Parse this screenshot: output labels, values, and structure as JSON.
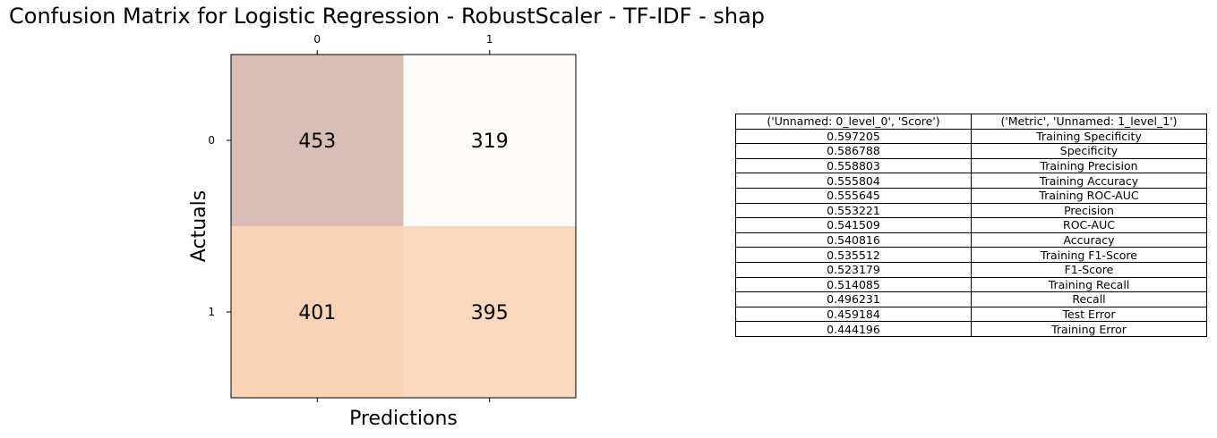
{
  "title": "Confusion Matrix for Logistic Regression - RobustScaler - TF-IDF - shap",
  "chart_data": {
    "type": "heatmap",
    "title": "Confusion Matrix for Logistic Regression - RobustScaler - TF-IDF - shap",
    "xlabel": "Predictions",
    "ylabel": "Actuals",
    "x_ticks": [
      "0",
      "1"
    ],
    "y_ticks": [
      "0",
      "1"
    ],
    "matrix": [
      [
        453,
        319
      ],
      [
        401,
        395
      ]
    ],
    "colors": [
      [
        "#d9beb5",
        "#fffbf8"
      ],
      [
        "#fad3b7",
        "#fad8bd"
      ]
    ]
  },
  "table": {
    "headers": [
      "('Unnamed: 0_level_0', 'Score')",
      "('Metric', 'Unnamed: 1_level_1')"
    ],
    "rows": [
      [
        "0.597205",
        "Training Specificity"
      ],
      [
        "0.586788",
        "Specificity"
      ],
      [
        "0.558803",
        "Training Precision"
      ],
      [
        "0.555804",
        "Training Accuracy"
      ],
      [
        "0.555645",
        "Training ROC-AUC"
      ],
      [
        "0.553221",
        "Precision"
      ],
      [
        "0.541509",
        "ROC-AUC"
      ],
      [
        "0.540816",
        "Accuracy"
      ],
      [
        "0.535512",
        "Training F1-Score"
      ],
      [
        "0.523179",
        "F1-Score"
      ],
      [
        "0.514085",
        "Training Recall"
      ],
      [
        "0.496231",
        "Recall"
      ],
      [
        "0.459184",
        "Test Error"
      ],
      [
        "0.444196",
        "Training Error"
      ]
    ]
  }
}
